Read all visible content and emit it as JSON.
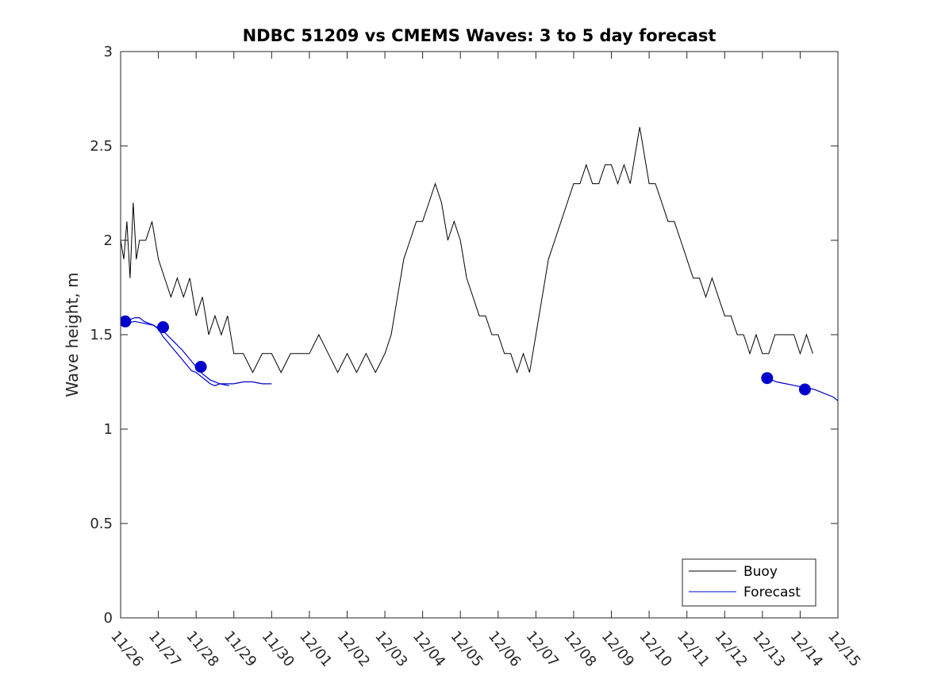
{
  "chart_data": {
    "type": "line",
    "title": "NDBC 51209 vs CMEMS Waves: 3 to 5 day forecast",
    "xlabel": "",
    "ylabel": "Wave height, m",
    "xlim": [
      "11/26",
      "12/15"
    ],
    "ylim": [
      0,
      3
    ],
    "x_ticks": [
      "11/26",
      "11/27",
      "11/28",
      "11/29",
      "11/30",
      "12/01",
      "12/02",
      "12/03",
      "12/04",
      "12/05",
      "12/06",
      "12/07",
      "12/08",
      "12/09",
      "12/10",
      "12/11",
      "12/12",
      "12/13",
      "12/14",
      "12/15"
    ],
    "y_ticks": [
      "0",
      "0.5",
      "1",
      "1.5",
      "2",
      "2.5",
      "3"
    ],
    "legend": {
      "position": "bottom-right",
      "entries": [
        "Buoy",
        "Forecast"
      ]
    },
    "grid": false,
    "series": [
      {
        "name": "Buoy",
        "color": "#000000",
        "x": [
          "11/26 00:00",
          "11/26 02:00",
          "11/26 04:00",
          "11/26 06:00",
          "11/26 08:00",
          "11/26 10:00",
          "11/26 12:00",
          "11/26 16:00",
          "11/26 20:00",
          "11/27 00:00",
          "11/27 04:00",
          "11/27 08:00",
          "11/27 12:00",
          "11/27 16:00",
          "11/27 20:00",
          "11/28 00:00",
          "11/28 04:00",
          "11/28 08:00",
          "11/28 12:00",
          "11/28 16:00",
          "11/28 20:00",
          "11/29 00:00",
          "11/29 06:00",
          "11/29 12:00",
          "11/29 18:00",
          "11/30 00:00",
          "11/30 06:00",
          "11/30 12:00",
          "11/30 18:00",
          "12/01 00:00",
          "12/01 06:00",
          "12/01 12:00",
          "12/01 18:00",
          "12/02 00:00",
          "12/02 06:00",
          "12/02 12:00",
          "12/02 18:00",
          "12/03 00:00",
          "12/03 04:00",
          "12/03 08:00",
          "12/03 12:00",
          "12/03 16:00",
          "12/03 20:00",
          "12/04 00:00",
          "12/04 04:00",
          "12/04 08:00",
          "12/04 12:00",
          "12/04 16:00",
          "12/04 20:00",
          "12/05 00:00",
          "12/05 04:00",
          "12/05 08:00",
          "12/05 12:00",
          "12/05 16:00",
          "12/05 20:00",
          "12/06 00:00",
          "12/06 04:00",
          "12/06 08:00",
          "12/06 12:00",
          "12/06 16:00",
          "12/06 20:00",
          "12/07 00:00",
          "12/07 04:00",
          "12/07 08:00",
          "12/07 12:00",
          "12/07 16:00",
          "12/07 20:00",
          "12/08 00:00",
          "12/08 04:00",
          "12/08 08:00",
          "12/08 12:00",
          "12/08 16:00",
          "12/08 20:00",
          "12/09 00:00",
          "12/09 04:00",
          "12/09 08:00",
          "12/09 12:00",
          "12/09 16:00",
          "12/09 18:00",
          "12/09 20:00",
          "12/10 00:00",
          "12/10 04:00",
          "12/10 08:00",
          "12/10 12:00",
          "12/10 16:00",
          "12/10 20:00",
          "12/11 00:00",
          "12/11 04:00",
          "12/11 08:00",
          "12/11 12:00",
          "12/11 16:00",
          "12/11 20:00",
          "12/12 00:00",
          "12/12 04:00",
          "12/12 08:00",
          "12/12 12:00",
          "12/12 16:00",
          "12/12 20:00",
          "12/13 00:00",
          "12/13 04:00",
          "12/13 08:00",
          "12/13 12:00",
          "12/13 16:00",
          "12/13 20:00",
          "12/14 00:00",
          "12/14 04:00",
          "12/14 08:00"
        ],
        "y": [
          2.0,
          1.9,
          2.1,
          1.8,
          2.2,
          1.9,
          2.0,
          2.0,
          2.1,
          1.9,
          1.8,
          1.7,
          1.8,
          1.7,
          1.8,
          1.6,
          1.7,
          1.5,
          1.6,
          1.5,
          1.6,
          1.4,
          1.4,
          1.3,
          1.4,
          1.4,
          1.3,
          1.4,
          1.4,
          1.4,
          1.5,
          1.4,
          1.3,
          1.4,
          1.3,
          1.4,
          1.3,
          1.4,
          1.5,
          1.7,
          1.9,
          2.0,
          2.1,
          2.1,
          2.2,
          2.3,
          2.2,
          2.0,
          2.1,
          2.0,
          1.8,
          1.7,
          1.6,
          1.6,
          1.5,
          1.5,
          1.4,
          1.4,
          1.3,
          1.4,
          1.3,
          1.5,
          1.7,
          1.9,
          2.0,
          2.1,
          2.2,
          2.3,
          2.3,
          2.4,
          2.3,
          2.3,
          2.4,
          2.4,
          2.3,
          2.4,
          2.3,
          2.5,
          2.6,
          2.5,
          2.3,
          2.3,
          2.2,
          2.1,
          2.1,
          2.0,
          1.9,
          1.8,
          1.8,
          1.7,
          1.8,
          1.7,
          1.6,
          1.6,
          1.5,
          1.5,
          1.4,
          1.5,
          1.4,
          1.4,
          1.5,
          1.5,
          1.5,
          1.5,
          1.4,
          1.5,
          1.4
        ]
      },
      {
        "name": "Forecast",
        "color": "#0000cc",
        "segments": [
          {
            "x": [
              "11/26 03:00",
              "11/26 06:00",
              "11/26 09:00",
              "11/26 12:00",
              "11/26 15:00",
              "11/26 18:00",
              "11/26 21:00",
              "11/27 00:00",
              "11/27 03:00",
              "11/27 06:00",
              "11/27 09:00",
              "11/27 12:00",
              "11/27 15:00",
              "11/27 18:00",
              "11/27 21:00",
              "11/28 00:00",
              "11/28 03:00",
              "11/28 06:00",
              "11/28 09:00",
              "11/28 12:00",
              "11/28 15:00",
              "11/28 18:00",
              "11/28 21:00",
              "11/29 00:00",
              "11/29 06:00",
              "11/29 12:00",
              "11/29 18:00",
              "11/30 00:00"
            ],
            "y": [
              1.57,
              1.58,
              1.59,
              1.59,
              1.57,
              1.56,
              1.55,
              1.53,
              1.49,
              1.46,
              1.43,
              1.4,
              1.37,
              1.34,
              1.31,
              1.3,
              1.28,
              1.26,
              1.24,
              1.23,
              1.24,
              1.24,
              1.24,
              1.24,
              1.25,
              1.25,
              1.24,
              1.24
            ]
          },
          {
            "x": [
              "11/26 03:00",
              "11/26 09:00",
              "11/26 15:00",
              "11/26 21:00",
              "11/27 03:00",
              "11/27 09:00",
              "11/27 15:00",
              "11/27 21:00",
              "11/28 03:00",
              "11/28 09:00",
              "11/28 15:00",
              "11/28 21:00"
            ],
            "y": [
              1.56,
              1.57,
              1.56,
              1.55,
              1.52,
              1.47,
              1.42,
              1.36,
              1.3,
              1.26,
              1.24,
              1.23
            ]
          },
          {
            "x": [
              "12/13 03:00",
              "12/13 09:00",
              "12/13 15:00",
              "12/13 21:00",
              "12/14 03:00",
              "12/14 09:00",
              "12/14 15:00",
              "12/14 21:00",
              "12/15 00:00"
            ],
            "y": [
              1.27,
              1.25,
              1.24,
              1.23,
              1.22,
              1.21,
              1.19,
              1.17,
              1.15
            ]
          }
        ],
        "markers": {
          "x": [
            "11/26 03:00",
            "11/27 03:00",
            "11/28 03:00",
            "12/13 03:00",
            "12/14 03:00"
          ],
          "y": [
            1.57,
            1.54,
            1.33,
            1.27,
            1.21
          ]
        }
      }
    ]
  }
}
